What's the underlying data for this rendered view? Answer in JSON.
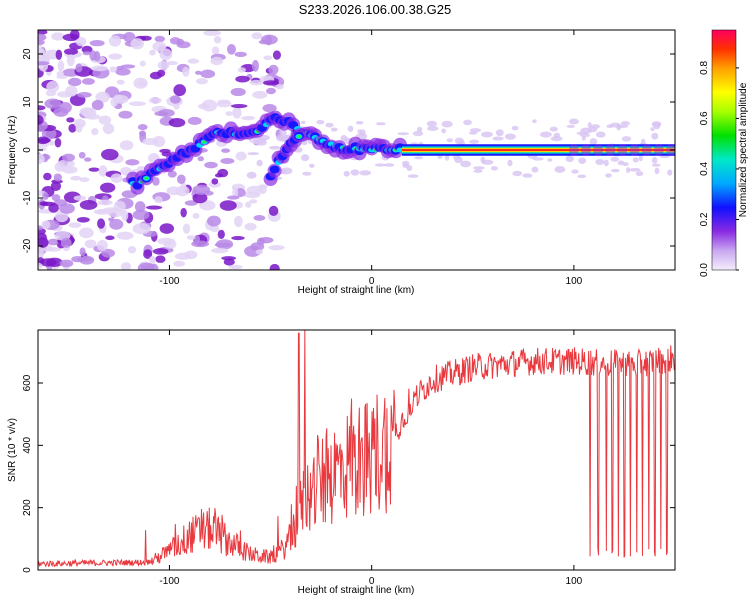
{
  "title": "S233.2026.106.00.38.G25",
  "chart_data": [
    {
      "type": "heatmap",
      "xlabel": "Height of straight line (km)",
      "ylabel": "Frequency (Hz)",
      "xlim": [
        -165,
        150
      ],
      "ylim": [
        -25,
        25
      ],
      "x_ticks": [
        "-100",
        "0",
        "100"
      ],
      "y_ticks": [
        "-20",
        "-10",
        "0",
        "10",
        "20"
      ],
      "colorbar": {
        "label": "Normalized spectral amplitude",
        "range": [
          0,
          0.95
        ],
        "ticks": [
          "0.0",
          "0.2",
          "0.4",
          "0.6",
          "0.8"
        ]
      },
      "ridge": [
        {
          "x": -115,
          "y": -7
        },
        {
          "x": -105,
          "y": -4
        },
        {
          "x": -95,
          "y": -1
        },
        {
          "x": -85,
          "y": 1
        },
        {
          "x": -75,
          "y": 4
        },
        {
          "x": -65,
          "y": 3
        },
        {
          "x": -55,
          "y": 4
        },
        {
          "x": -48,
          "y": 7
        },
        {
          "x": -42,
          "y": 6
        },
        {
          "x": -35,
          "y": 4
        },
        {
          "x": -25,
          "y": 2
        },
        {
          "x": -15,
          "y": 0.5
        },
        {
          "x": 0,
          "y": 0
        },
        {
          "x": 15,
          "y": 0
        },
        {
          "x": 150,
          "y": 0
        }
      ],
      "branch": [
        {
          "x": -50,
          "y": -5
        },
        {
          "x": -45,
          "y": -2
        },
        {
          "x": -40,
          "y": 2
        },
        {
          "x": -35,
          "y": 3
        }
      ],
      "grid": false
    },
    {
      "type": "line",
      "xlabel": "Height of straight line (km)",
      "ylabel": "SNR (10 * v/v)",
      "xlim": [
        -165,
        150
      ],
      "ylim": [
        0,
        770
      ],
      "x_ticks": [
        "-100",
        "0",
        "100"
      ],
      "y_ticks": [
        "0",
        "200",
        "400",
        "600"
      ],
      "color": "#e8393f",
      "envelope": [
        {
          "x": -165,
          "y": 20
        },
        {
          "x": -110,
          "y": 25
        },
        {
          "x": -100,
          "y": 60
        },
        {
          "x": -90,
          "y": 110
        },
        {
          "x": -80,
          "y": 130
        },
        {
          "x": -70,
          "y": 90
        },
        {
          "x": -60,
          "y": 50
        },
        {
          "x": -50,
          "y": 40
        },
        {
          "x": -45,
          "y": 60
        },
        {
          "x": -40,
          "y": 100
        },
        {
          "x": -33,
          "y": 230
        },
        {
          "x": -25,
          "y": 280
        },
        {
          "x": -15,
          "y": 330
        },
        {
          "x": -5,
          "y": 350
        },
        {
          "x": 5,
          "y": 390
        },
        {
          "x": 10,
          "y": 420
        },
        {
          "x": 20,
          "y": 540
        },
        {
          "x": 30,
          "y": 610
        },
        {
          "x": 50,
          "y": 650
        },
        {
          "x": 80,
          "y": 670
        },
        {
          "x": 100,
          "y": 670
        },
        {
          "x": 130,
          "y": 660
        },
        {
          "x": 150,
          "y": 680
        }
      ],
      "spikes": [
        {
          "x": -36,
          "y": 760
        },
        {
          "x": -33,
          "y": 770
        },
        {
          "x": -10,
          "y": 550
        },
        {
          "x": -5,
          "y": 420
        }
      ],
      "dropouts": [
        108,
        112,
        116,
        119,
        122,
        125,
        128,
        131,
        134,
        137,
        140,
        143,
        146
      ],
      "grid": false
    }
  ]
}
